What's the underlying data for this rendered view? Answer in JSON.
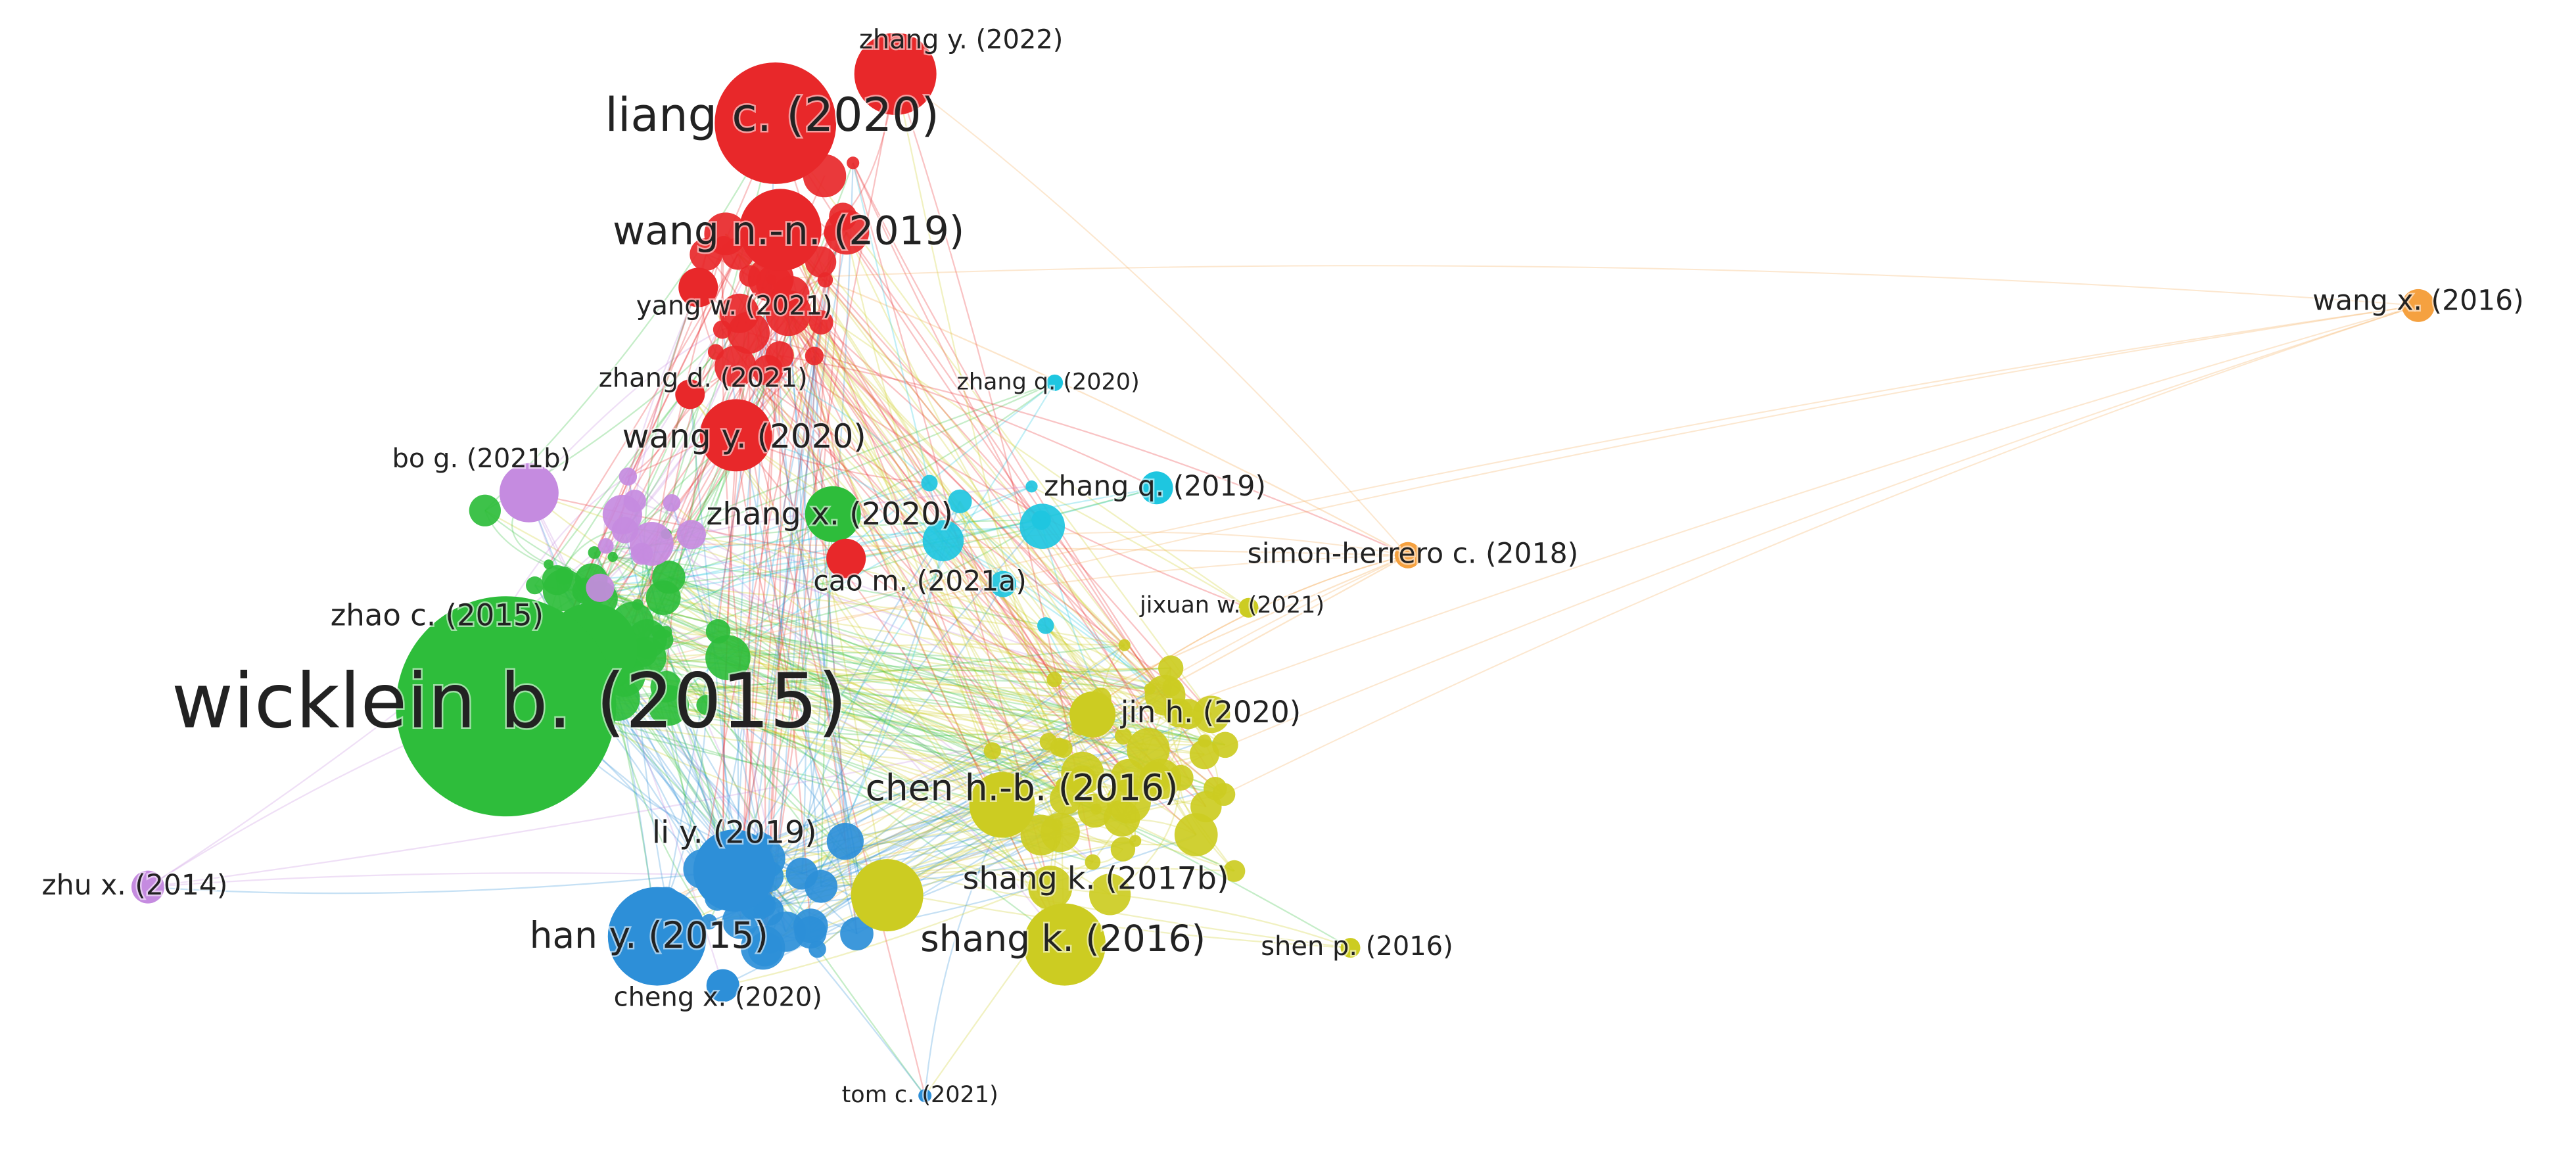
{
  "nodes": [
    {
      "label": "zhang y. (2022)"
    },
    {
      "label": "liang c. (2020)"
    },
    {
      "label": "wang n.-n. (2019)"
    },
    {
      "label": "yang w. (2021)"
    },
    {
      "label": "zhang d. (2021)"
    },
    {
      "label": "wang y. (2020)"
    },
    {
      "label": "bo g. (2021b)"
    },
    {
      "label": "zhang q. (2020)"
    },
    {
      "label": "zhang q. (2019)"
    },
    {
      "label": "zhang x. (2020)"
    },
    {
      "label": "simon-herrero c. (2018)"
    },
    {
      "label": "cao m. (2021a)"
    },
    {
      "label": "jixuan w. (2021)"
    },
    {
      "label": "zhao c. (2015)"
    },
    {
      "label": "wicklein b. (2015)"
    },
    {
      "label": "jin h. (2020)"
    },
    {
      "label": "chen h.-b. (2016)"
    },
    {
      "label": "li y. (2019)"
    },
    {
      "label": "shang k. (2017b)"
    },
    {
      "label": "zhu x. (2014)"
    },
    {
      "label": "han y. (2015)"
    },
    {
      "label": "shang k. (2016)"
    },
    {
      "label": "shen p. (2016)"
    },
    {
      "label": "cheng x. (2020)"
    },
    {
      "label": "tom c. (2021)"
    },
    {
      "label": "wang x. (2016)"
    }
  ]
}
